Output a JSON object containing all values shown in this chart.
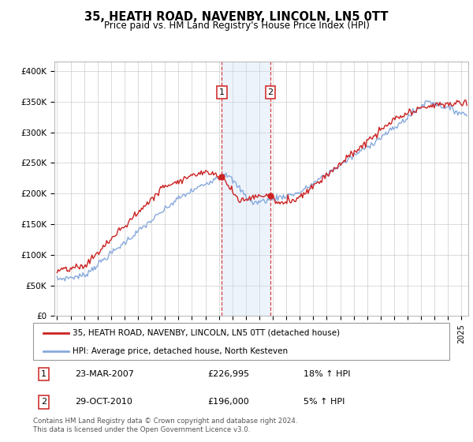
{
  "title": "35, HEATH ROAD, NAVENBY, LINCOLN, LN5 0TT",
  "subtitle": "Price paid vs. HM Land Registry's House Price Index (HPI)",
  "ylabel_ticks": [
    "£0",
    "£50K",
    "£100K",
    "£150K",
    "£200K",
    "£250K",
    "£300K",
    "£350K",
    "£400K"
  ],
  "ytick_values": [
    0,
    50000,
    100000,
    150000,
    200000,
    250000,
    300000,
    350000,
    400000
  ],
  "ylim": [
    0,
    415000
  ],
  "xlim_start": 1994.8,
  "xlim_end": 2025.5,
  "transaction1_year": 2007.22,
  "transaction1_price": 226995,
  "transaction2_year": 2010.83,
  "transaction2_price": 196000,
  "legend_line1": "35, HEATH ROAD, NAVENBY, LINCOLN, LN5 0TT (detached house)",
  "legend_line2": "HPI: Average price, detached house, North Kesteven",
  "footer": "Contains HM Land Registry data © Crown copyright and database right 2024.\nThis data is licensed under the Open Government Licence v3.0.",
  "line_color_red": "#cc2222",
  "line_color_blue": "#88aadd",
  "shade_color": "#ccddf5",
  "vline_color": "#cc2222",
  "box_color": "#cc2222",
  "grid_color": "#cccccc",
  "bg_color": "#f8f8f8"
}
